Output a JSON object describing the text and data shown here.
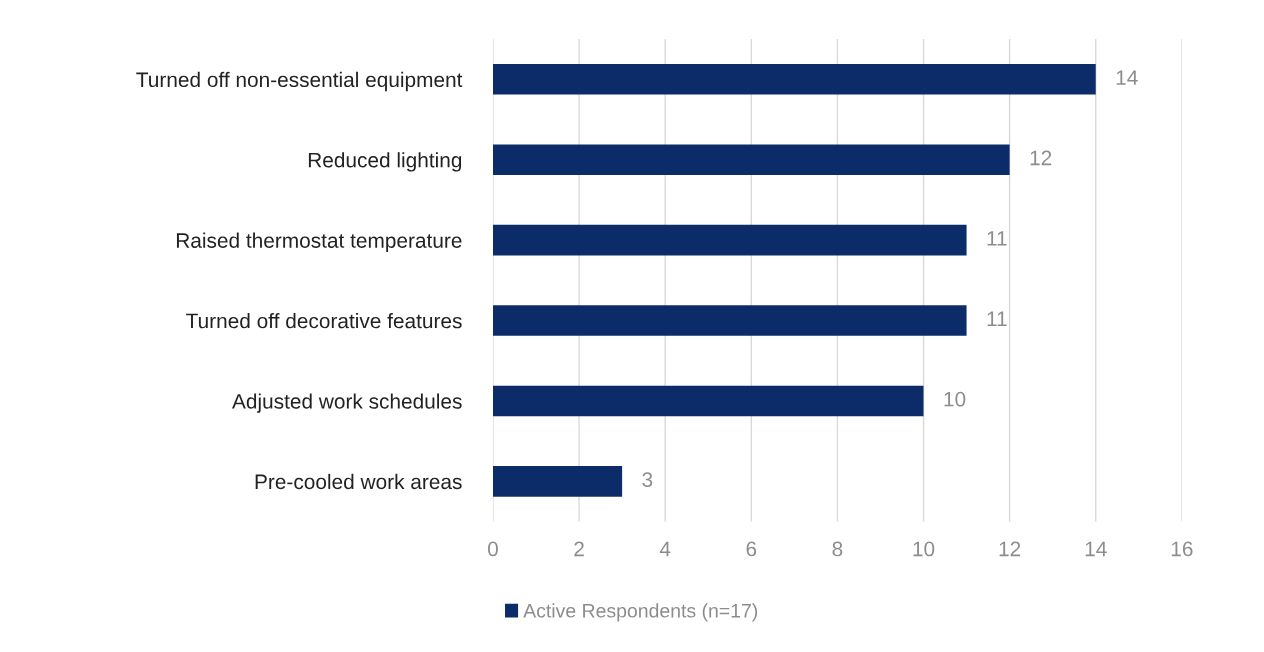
{
  "chart_data": {
    "type": "bar",
    "orientation": "horizontal",
    "categories": [
      "Turned off non-essential equipment",
      "Reduced lighting",
      "Raised thermostat temperature",
      "Turned off decorative features",
      "Adjusted work schedules",
      "Pre-cooled work areas"
    ],
    "series": [
      {
        "name": "Active Respondents (n=17)",
        "color": "#0c2c69",
        "values": [
          14,
          12,
          11,
          11,
          10,
          3
        ]
      }
    ],
    "xlim": [
      0,
      16
    ],
    "xticks": [
      0,
      2,
      4,
      6,
      8,
      10,
      12,
      14,
      16
    ],
    "grid": "x",
    "legend": "bottom",
    "data_labels": true
  }
}
